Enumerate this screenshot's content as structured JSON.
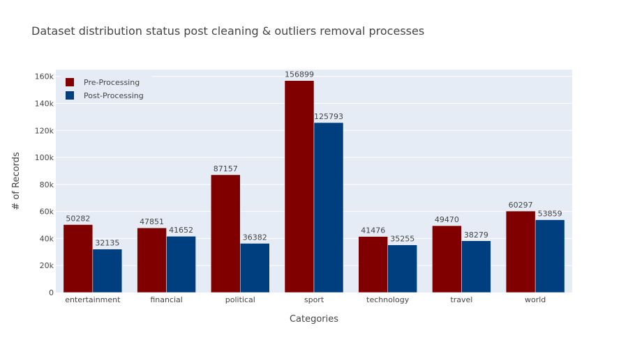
{
  "chart_data": {
    "type": "bar",
    "title": "Dataset distribution status post cleaning & outliers removal processes",
    "xlabel": "Categories",
    "ylabel": "# of Records",
    "categories": [
      "entertainment",
      "financial",
      "political",
      "sport",
      "technology",
      "travel",
      "world"
    ],
    "series": [
      {
        "name": "Pre-Processing",
        "color": "#800000",
        "values": [
          50282,
          47851,
          87157,
          156899,
          41476,
          49470,
          60297
        ]
      },
      {
        "name": "Post-Processing",
        "color": "#003f7f",
        "values": [
          32135,
          41652,
          36382,
          125793,
          35255,
          38279,
          53859
        ]
      }
    ],
    "ylim": [
      0,
      165000
    ],
    "yticks": [
      0,
      20000,
      40000,
      60000,
      80000,
      100000,
      120000,
      140000,
      160000
    ],
    "ytick_labels": [
      "0",
      "20k",
      "40k",
      "60k",
      "80k",
      "100k",
      "120k",
      "140k",
      "160k"
    ],
    "grid": true,
    "legend_position": "top-left",
    "plot_background": "#e5ecf6"
  }
}
